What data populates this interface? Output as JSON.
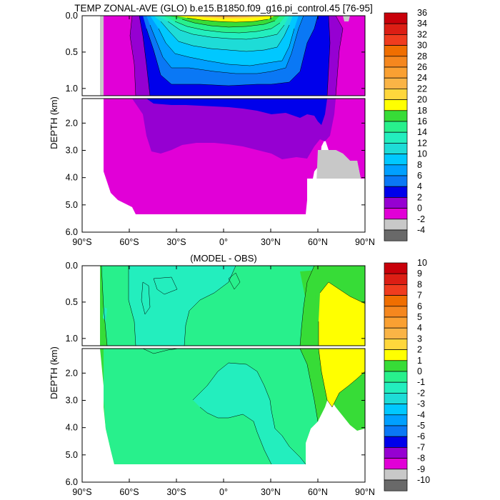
{
  "figure": {
    "top_title": "TEMP ZONAL-AVE (GLO) b.e15.B1850.f09_g16.pi_control.45 [76-95]",
    "bottom_title": "(MODEL - OBS)"
  },
  "chart_data": [
    {
      "type": "heatmap",
      "name": "model-temperature",
      "title": "TEMP ZONAL-AVE (GLO) b.e15.B1850.f09_g16.pi_control.45 [76-95]",
      "xlabel": "",
      "ylabel": "DEPTH (km)",
      "x_ticks": [
        "90°S",
        "60°S",
        "30°S",
        "0°",
        "30°N",
        "60°N",
        "90°N"
      ],
      "x_tick_values": [
        -90,
        -60,
        -30,
        0,
        30,
        60,
        90
      ],
      "y_ticks_upper": [
        "0.0",
        "0.5",
        "1.0"
      ],
      "y_tick_values_upper": [
        0.0,
        0.5,
        1.0
      ],
      "y_ticks_lower": [
        "2.0",
        "3.0",
        "4.0",
        "5.0",
        "6.0"
      ],
      "y_tick_values_lower": [
        2.0,
        3.0,
        4.0,
        5.0,
        6.0
      ],
      "xlim": [
        -90,
        90
      ],
      "ylim_upper": [
        1.1,
        0.0
      ],
      "ylim_lower": [
        6.0,
        1.1
      ],
      "colorbar_levels": [
        "36",
        "34",
        "32",
        "30",
        "28",
        "26",
        "24",
        "22",
        "20",
        "18",
        "16",
        "14",
        "12",
        "10",
        "8",
        "6",
        "4",
        "2",
        "0",
        "-2",
        "-4"
      ],
      "colorbar_colors": [
        "#c8000a",
        "#dc1e14",
        "#f03c1e",
        "#f06e00",
        "#f5871e",
        "#faa032",
        "#fab446",
        "#ffd73c",
        "#ffff00",
        "#37dc37",
        "#28f08c",
        "#23eebe",
        "#1edcd7",
        "#00c8ff",
        "#00a0ff",
        "#0a78f5",
        "#0000eb",
        "#9600d2",
        "#e100d7",
        "#c8c8c8",
        "#696969"
      ],
      "contour_fills": [
        {
          "label": "2",
          "color": "#e100d7"
        },
        {
          "label": "4",
          "color": "#9600d2"
        },
        {
          "label": "6",
          "color": "#0000eb"
        },
        {
          "label": "8",
          "color": "#0a78f5"
        },
        {
          "label": "10",
          "color": "#00a0ff"
        },
        {
          "label": "12",
          "color": "#00c8ff"
        },
        {
          "label": "14",
          "color": "#1edcd7"
        },
        {
          "label": "16",
          "color": "#23eebe"
        },
        {
          "label": "18",
          "color": "#28f08c"
        },
        {
          "label": "20",
          "color": "#37dc37"
        },
        {
          "label": "22",
          "color": "#ffff00"
        },
        {
          "label": "24",
          "color": "#ffd73c"
        },
        {
          "label": "26",
          "color": "#fab446"
        },
        {
          "label": "28",
          "color": "#f5871e"
        }
      ]
    },
    {
      "type": "heatmap",
      "name": "model-minus-obs",
      "title": "(MODEL - OBS)",
      "xlabel": "",
      "ylabel": "DEPTH (km)",
      "x_ticks": [
        "90°S",
        "60°S",
        "30°S",
        "0°",
        "30°N",
        "60°N",
        "90°N"
      ],
      "x_tick_values": [
        -90,
        -60,
        -30,
        0,
        30,
        60,
        90
      ],
      "y_ticks_upper": [
        "0.0",
        "0.5",
        "1.0"
      ],
      "y_tick_values_upper": [
        0.0,
        0.5,
        1.0
      ],
      "y_ticks_lower": [
        "2.0",
        "3.0",
        "4.0",
        "5.0",
        "6.0"
      ],
      "y_tick_values_lower": [
        2.0,
        3.0,
        4.0,
        5.0,
        6.0
      ],
      "xlim": [
        -90,
        90
      ],
      "ylim_upper": [
        1.1,
        0.0
      ],
      "ylim_lower": [
        6.0,
        1.1
      ],
      "colorbar_levels": [
        "10",
        "9",
        "8",
        "7",
        "6",
        "5",
        "4",
        "3",
        "2",
        "1",
        "0",
        "-1",
        "-2",
        "-3",
        "-4",
        "-5",
        "-6",
        "-7",
        "-8",
        "-9",
        "-10"
      ],
      "colorbar_colors": [
        "#c8000a",
        "#dc1e14",
        "#f03c1e",
        "#f06e00",
        "#f5871e",
        "#faa032",
        "#fab446",
        "#ffd73c",
        "#ffff00",
        "#37dc37",
        "#28f08c",
        "#23eebe",
        "#1edcd7",
        "#00c8ff",
        "#00a0ff",
        "#0a78f5",
        "#0000eb",
        "#9600d2",
        "#e100d7",
        "#c8c8c8",
        "#696969"
      ]
    }
  ]
}
